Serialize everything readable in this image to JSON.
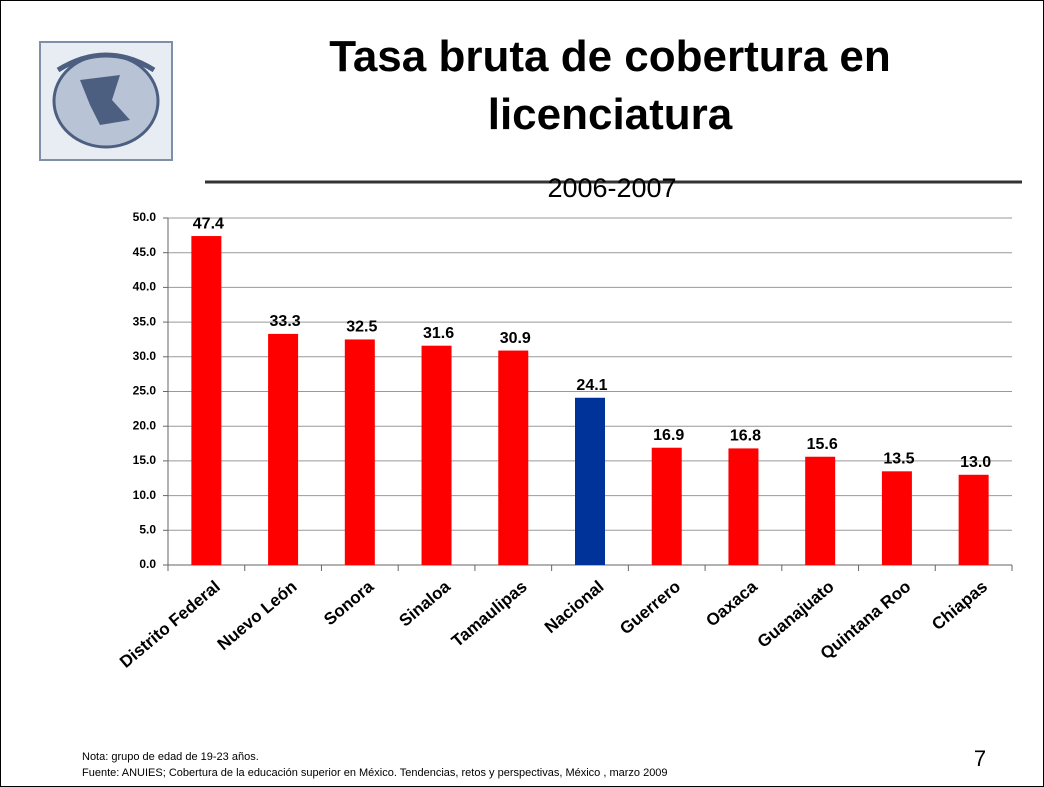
{
  "chart_data": {
    "type": "bar",
    "title": "Tasa bruta de cobertura en licenciatura",
    "subtitle": "2006-2007",
    "categories": [
      "Distrito Federal",
      "Nuevo León",
      "Sonora",
      "Sinaloa",
      "Tamaulipas",
      "Nacional",
      "Guerrero",
      "Oaxaca",
      "Guanajuato",
      "Quintana Roo",
      "Chiapas"
    ],
    "values": [
      47.4,
      33.3,
      32.5,
      31.6,
      30.9,
      24.1,
      16.9,
      16.8,
      15.6,
      13.5,
      13.0
    ],
    "value_labels": [
      "47.4",
      "33.3",
      "32.5",
      "31.6",
      "30.9",
      "24.1",
      "16.9",
      "16.8",
      "15.6",
      "13.5",
      "13.0"
    ],
    "colors": [
      "#ff0000",
      "#ff0000",
      "#ff0000",
      "#ff0000",
      "#ff0000",
      "#003399",
      "#ff0000",
      "#ff0000",
      "#ff0000",
      "#ff0000",
      "#ff0000"
    ],
    "ylim": [
      0,
      50
    ],
    "yticks": [
      {
        "value": 0,
        "label": "0.0"
      },
      {
        "value": 5,
        "label": "5.0"
      },
      {
        "value": 10,
        "label": "10.0"
      },
      {
        "value": 15,
        "label": "15.0"
      },
      {
        "value": 20,
        "label": "20.0"
      },
      {
        "value": 25,
        "label": "25.0"
      },
      {
        "value": 30,
        "label": "30.0"
      },
      {
        "value": 35,
        "label": "35.0"
      },
      {
        "value": 40,
        "label": "40.0"
      },
      {
        "value": 45,
        "label": "45.0"
      },
      {
        "value": 50,
        "label": "50.0"
      }
    ],
    "grid": true,
    "notes": [
      "Nota: grupo de edad de 19-23 años.",
      "Fuente: ANUIES; Cobertura de la educación superior en México. Tendencias, retos y perspectivas, México , marzo 2009"
    ],
    "page_number": "7"
  }
}
